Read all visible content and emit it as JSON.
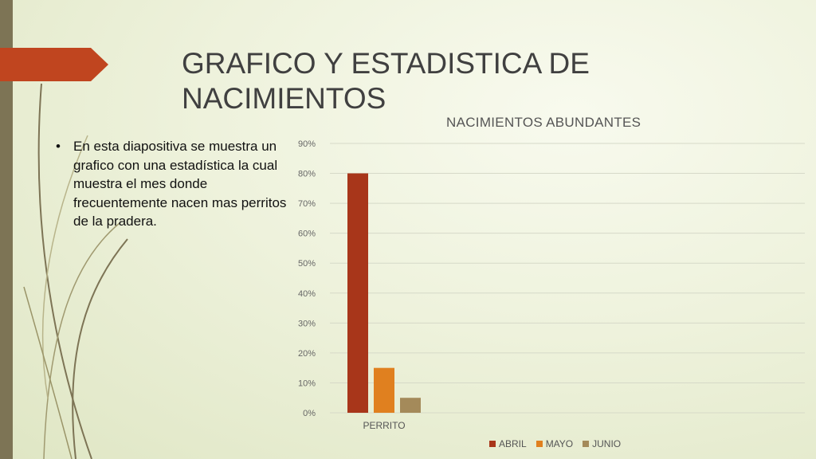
{
  "slide": {
    "title": "GRAFICO Y ESTADISTICA DE NACIMIENTOS",
    "bullets": [
      "En esta diapositiva se muestra un grafico con una estadística la cual muestra el mes donde frecuentemente nacen mas perritos de la pradera."
    ]
  },
  "colors": {
    "accent_tab": "#c0451f",
    "side_bar": "#7d7455"
  },
  "chart_data": {
    "type": "bar",
    "title": "NACIMIENTOS ABUNDANTES",
    "categories": [
      "PERRITO"
    ],
    "series": [
      {
        "name": "ABRIL",
        "values": [
          80
        ],
        "color": "#a8361a"
      },
      {
        "name": "MAYO",
        "values": [
          15
        ],
        "color": "#e0801f"
      },
      {
        "name": "JUNIO",
        "values": [
          5
        ],
        "color": "#a48a5a"
      }
    ],
    "ylim": [
      0,
      90
    ],
    "yticks": [
      "0%",
      "10%",
      "20%",
      "30%",
      "40%",
      "50%",
      "60%",
      "70%",
      "80%",
      "90%"
    ],
    "grid": true,
    "legend_position": "bottom"
  }
}
